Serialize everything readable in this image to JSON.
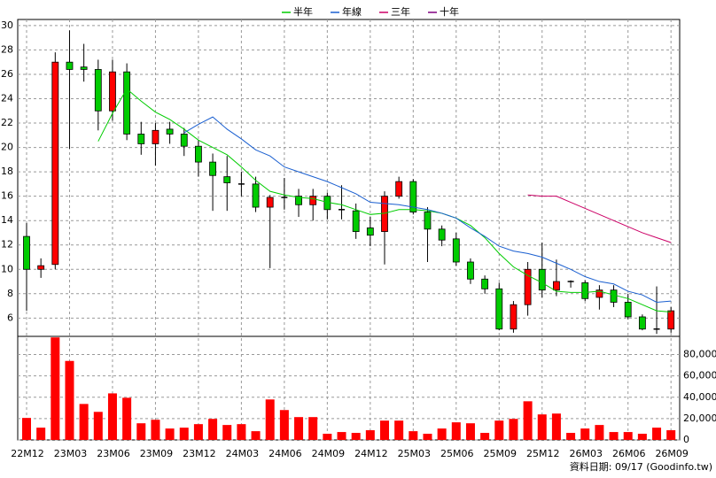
{
  "chart_data": [
    {
      "type": "candlestick",
      "categories": [
        "22M12",
        null,
        null,
        "23M03",
        null,
        null,
        "23M06",
        null,
        null,
        "23M09",
        null,
        null,
        "23M12",
        null,
        null,
        "24M03",
        null,
        null,
        "24M06",
        null,
        null,
        "24M09",
        null,
        null,
        "24M12",
        null,
        null,
        "25M03",
        null,
        null,
        "25M06",
        null,
        null,
        "25M09",
        null,
        null,
        "25M12",
        null,
        null,
        "26M03",
        null,
        null,
        "26M06",
        null,
        null,
        "26M09"
      ],
      "open": [
        12.7,
        10.0,
        10.4,
        27.0,
        26.6,
        26.4,
        23.0,
        26.2,
        21.1,
        20.3,
        21.5,
        21.1,
        20.1,
        18.8,
        17.6,
        17.0,
        17.0,
        15.1,
        15.9,
        16.0,
        15.3,
        16.0,
        14.9,
        14.8,
        13.4,
        13.1,
        16.0,
        17.2,
        14.7,
        13.3,
        12.5,
        10.6,
        9.2,
        8.4,
        5.1,
        7.1,
        10.0,
        8.3,
        9.0,
        8.9,
        7.7,
        8.3,
        7.3,
        6.1,
        5.1,
        5.1
      ],
      "high": [
        13.8,
        10.9,
        27.8,
        29.6,
        28.5,
        27.2,
        27.2,
        26.9,
        22.1,
        22.0,
        22.1,
        21.6,
        20.6,
        19.5,
        19.3,
        18.0,
        17.6,
        16.1,
        17.5,
        16.6,
        16.6,
        16.3,
        16.9,
        15.4,
        14.3,
        16.4,
        17.6,
        17.4,
        15.1,
        13.6,
        13.0,
        10.9,
        9.5,
        8.9,
        7.4,
        10.6,
        12.2,
        10.8,
        9.1,
        9.1,
        8.7,
        8.7,
        8.0,
        6.3,
        8.6,
        6.9
      ],
      "low": [
        6.6,
        9.3,
        10.0,
        19.9,
        25.4,
        21.4,
        22.2,
        20.6,
        19.4,
        18.5,
        20.3,
        19.3,
        17.6,
        14.8,
        14.8,
        16.0,
        14.7,
        10.1,
        14.9,
        14.3,
        14.0,
        14.1,
        14.1,
        12.5,
        11.9,
        10.4,
        15.8,
        14.5,
        10.6,
        11.9,
        10.3,
        8.8,
        8.0,
        5.0,
        4.8,
        6.2,
        7.7,
        7.8,
        8.5,
        7.4,
        6.7,
        6.9,
        5.9,
        5.0,
        4.7,
        4.8
      ],
      "close": [
        10.0,
        10.3,
        27.0,
        26.4,
        26.4,
        23.0,
        26.2,
        21.1,
        20.3,
        21.4,
        21.1,
        20.1,
        18.8,
        17.7,
        17.1,
        17.0,
        15.1,
        15.9,
        15.9,
        15.3,
        16.0,
        14.9,
        14.9,
        13.1,
        12.8,
        16.0,
        17.2,
        14.7,
        13.3,
        12.4,
        10.6,
        9.2,
        8.4,
        5.1,
        7.1,
        10.0,
        8.3,
        9.0,
        9.0,
        7.6,
        8.3,
        7.3,
        6.1,
        5.1,
        5.1,
        6.6
      ],
      "up_color": "#ff0000",
      "down_color": "#00cc00",
      "series": [
        {
          "name": "半年",
          "color": "#00cc00",
          "values": [
            null,
            null,
            null,
            null,
            null,
            20.5,
            22.8,
            24.8,
            23.8,
            22.9,
            22.3,
            21.5,
            20.6,
            20.0,
            19.4,
            18.4,
            17.3,
            16.4,
            16.1,
            15.9,
            15.8,
            15.5,
            15.3,
            14.9,
            14.5,
            14.6,
            14.9,
            14.9,
            14.8,
            14.6,
            14.2,
            13.6,
            12.6,
            11.3,
            10.2,
            9.5,
            8.9,
            8.2,
            8.1,
            8.1,
            8.2,
            7.9,
            7.6,
            7.1,
            6.6,
            6.5
          ]
        },
        {
          "name": "年線",
          "color": "#1a5fd0",
          "values": [
            null,
            null,
            null,
            null,
            null,
            null,
            null,
            null,
            null,
            null,
            null,
            21.2,
            21.9,
            22.5,
            21.5,
            20.7,
            19.8,
            19.3,
            18.4,
            18.0,
            17.6,
            17.2,
            16.7,
            16.2,
            15.5,
            15.4,
            15.3,
            15.1,
            14.9,
            14.6,
            14.2,
            13.4,
            12.7,
            11.9,
            11.5,
            11.3,
            11.0,
            10.5,
            10.0,
            9.4,
            9.0,
            8.8,
            8.2,
            7.9,
            7.3,
            7.4
          ]
        },
        {
          "name": "三年",
          "color": "#cc0066",
          "values": [
            null,
            null,
            null,
            null,
            null,
            null,
            null,
            null,
            null,
            null,
            null,
            null,
            null,
            null,
            null,
            null,
            null,
            null,
            null,
            null,
            null,
            null,
            null,
            null,
            null,
            null,
            null,
            null,
            null,
            null,
            null,
            null,
            null,
            null,
            null,
            16.1,
            16.0,
            16.0,
            15.5,
            15.0,
            14.5,
            14.0,
            13.5,
            13.0,
            12.6,
            12.2
          ]
        },
        {
          "name": "十年",
          "color": "#800080",
          "values": [
            null,
            null,
            null,
            null,
            null,
            null,
            null,
            null,
            null,
            null,
            null,
            null,
            null,
            null,
            null,
            null,
            null,
            null,
            null,
            null,
            null,
            null,
            null,
            null,
            null,
            null,
            null,
            null,
            null,
            null,
            null,
            null,
            null,
            null,
            null,
            null,
            null,
            null,
            null,
            null,
            null,
            null,
            null,
            null,
            null,
            null
          ]
        }
      ],
      "ylim": [
        4.5,
        30.5
      ],
      "yticks": [
        6,
        8,
        10,
        12,
        14,
        16,
        18,
        20,
        22,
        24,
        26,
        28,
        30
      ],
      "grid": true
    },
    {
      "type": "bar",
      "color": "#ff0000",
      "values": [
        20600,
        11500,
        96000,
        74000,
        33700,
        26300,
        43600,
        39500,
        15600,
        18900,
        10700,
        11500,
        14800,
        19700,
        14000,
        14800,
        8200,
        37900,
        28000,
        21400,
        21400,
        5800,
        7400,
        6600,
        9100,
        18100,
        18100,
        8200,
        5800,
        10700,
        16500,
        15600,
        6600,
        18100,
        19700,
        36200,
        23900,
        24700,
        6600,
        10700,
        14000,
        7400,
        7400,
        5800,
        11500,
        9100
      ],
      "ylim": [
        0,
        97000
      ],
      "yticks": [
        0,
        {
          "value": 20000,
          "label": "20,000"
        },
        {
          "value": 40000,
          "label": "40,000"
        },
        {
          "value": 60000,
          "label": "60,000"
        },
        {
          "value": 80000,
          "label": "80,000"
        }
      ],
      "grid": true
    }
  ],
  "footer": "資料日期: 09/17 (Goodinfo.tw)"
}
